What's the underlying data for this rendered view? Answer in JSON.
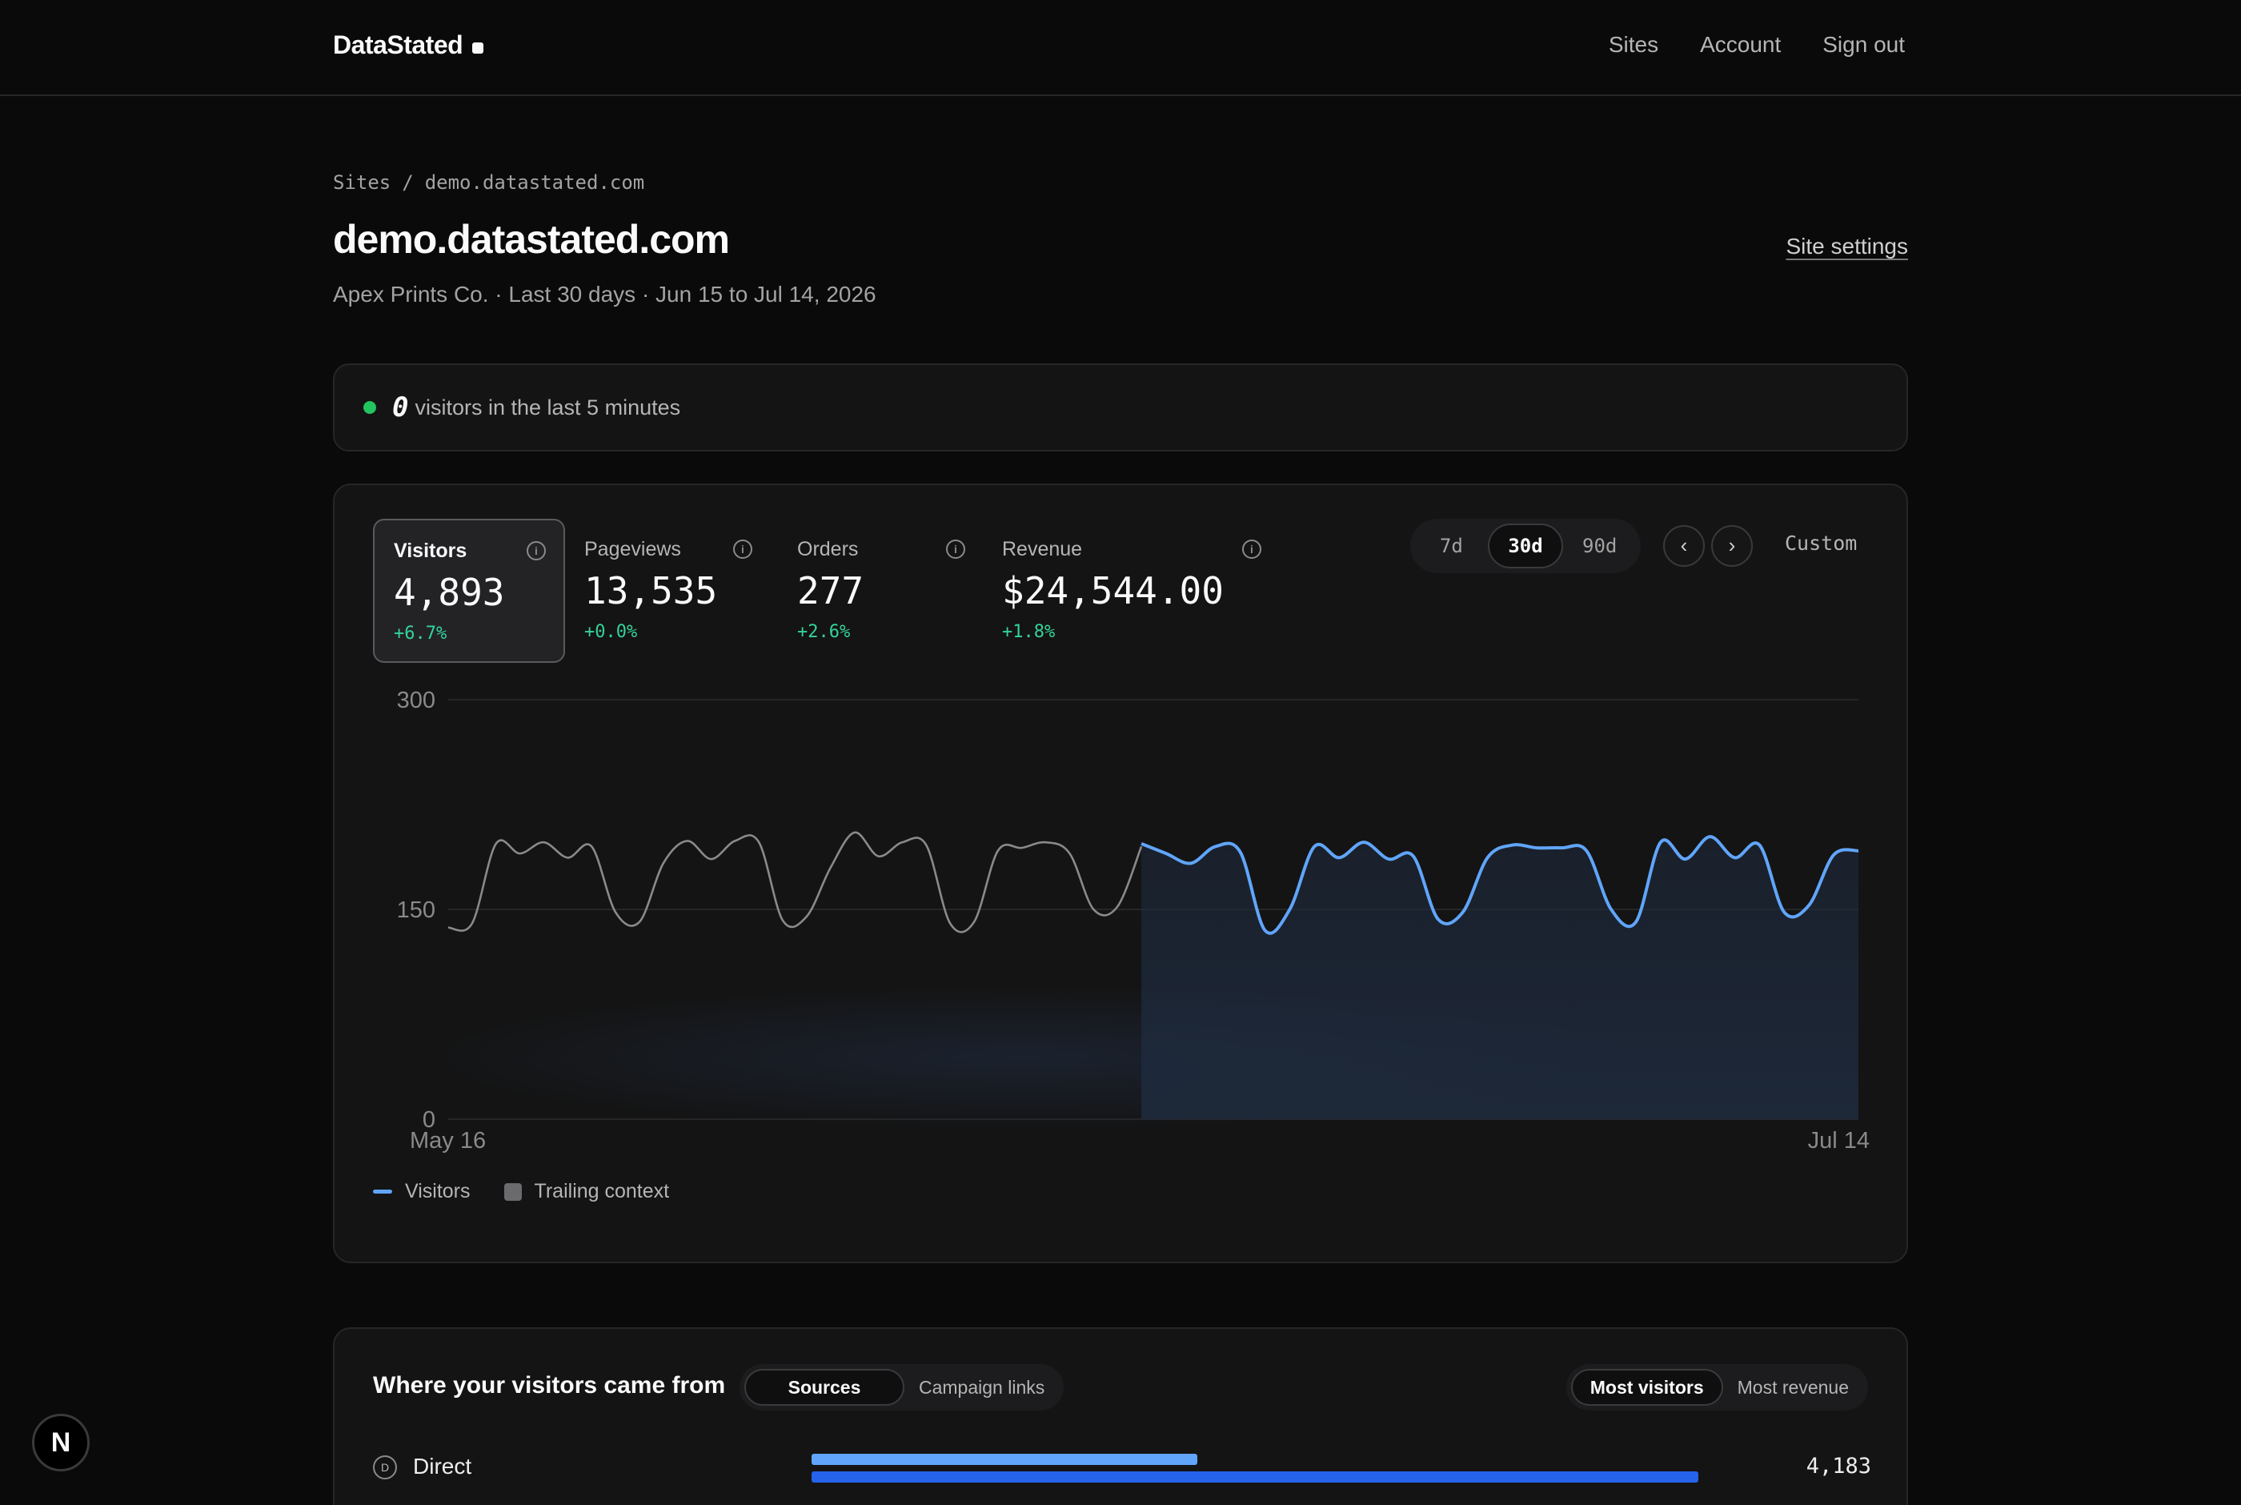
{
  "nav": {
    "brand": "DataStated",
    "links": [
      "Sites",
      "Account",
      "Sign out"
    ]
  },
  "header": {
    "breadcrumb_root": "Sites",
    "breadcrumb_sep": "/",
    "breadcrumb_current": "demo.datastated.com",
    "title": "demo.datastated.com",
    "subtitle": "Apex Prints Co. · Last 30 days · Jun 15 to Jul 14, 2026",
    "settings_link": "Site settings"
  },
  "realtime": {
    "count": "0",
    "text": "visitors in the last 5 minutes",
    "status_color": "#22c55e"
  },
  "metrics": [
    {
      "label": "Visitors",
      "value": "4,893",
      "delta": "+6.7%",
      "active": true
    },
    {
      "label": "Pageviews",
      "value": "13,535",
      "delta": "+0.0%",
      "active": false
    },
    {
      "label": "Orders",
      "value": "277",
      "delta": "+2.6%",
      "active": false
    },
    {
      "label": "Revenue",
      "value": "$24,544.00",
      "delta": "+1.8%",
      "active": false
    }
  ],
  "range": {
    "options": [
      "7d",
      "30d",
      "90d"
    ],
    "selected": "30d",
    "prev_icon": "chevron-left-icon",
    "next_icon": "chevron-right-icon",
    "custom_label": "Custom"
  },
  "chart_data": {
    "type": "line",
    "ylim": [
      0,
      300
    ],
    "y_ticks": [
      "300",
      "150",
      "0"
    ],
    "x_tick_labels": [
      "May 16",
      "Jul 14"
    ],
    "series": [
      {
        "name": "Trailing context",
        "color": "#8a8a8a",
        "values": [
          137,
          140,
          197,
          190,
          198,
          187,
          195,
          148,
          141,
          183,
          199,
          186,
          199,
          198,
          142,
          145,
          180,
          205,
          188,
          198,
          196,
          140,
          141,
          192,
          194,
          198,
          190,
          150,
          152,
          195
        ]
      },
      {
        "name": "Visitors",
        "color": "#60a5fa",
        "values": [
          197,
          190,
          183,
          195,
          191,
          135,
          150,
          195,
          187,
          198,
          186,
          188,
          143,
          148,
          187,
          196,
          194,
          194,
          192,
          150,
          141,
          198,
          186,
          202,
          187,
          196,
          148,
          153,
          189,
          192
        ]
      }
    ],
    "legend": [
      "Visitors",
      "Trailing context"
    ]
  },
  "sources": {
    "title": "Where your visitors came from",
    "tabs": [
      "Sources",
      "Campaign links"
    ],
    "active_tab": "Sources",
    "sort": [
      "Most visitors",
      "Most revenue"
    ],
    "active_sort": "Most visitors",
    "rows": [
      {
        "icon_letter": "D",
        "name": "Direct",
        "value": "4,183",
        "bar_top": 0.435,
        "bar_bottom": 1.0
      }
    ]
  },
  "badge": {
    "letter": "N"
  }
}
